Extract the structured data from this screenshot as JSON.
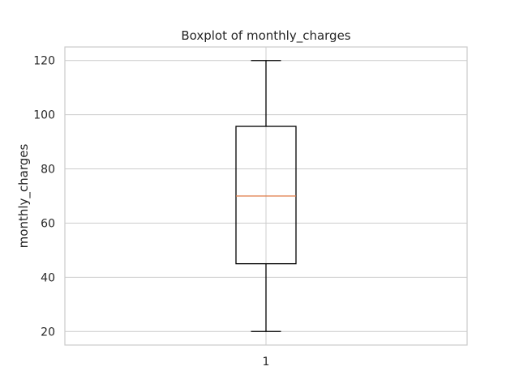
{
  "chart_data": {
    "type": "boxplot",
    "title": "Boxplot of monthly_charges",
    "xlabel": "",
    "ylabel": "monthly_charges",
    "categories": [
      "1"
    ],
    "boxes": [
      {
        "category": "1",
        "whisker_low": 20,
        "q1": 45,
        "median": 70,
        "q3": 95.7,
        "whisker_high": 120
      }
    ],
    "yticks": [
      20,
      40,
      60,
      80,
      100,
      120
    ],
    "ylim": [
      15,
      125
    ],
    "grid": true,
    "colors": {
      "box": "#000000",
      "median": "#e07b46",
      "grid": "#cccccc",
      "spine": "#cccccc"
    }
  }
}
